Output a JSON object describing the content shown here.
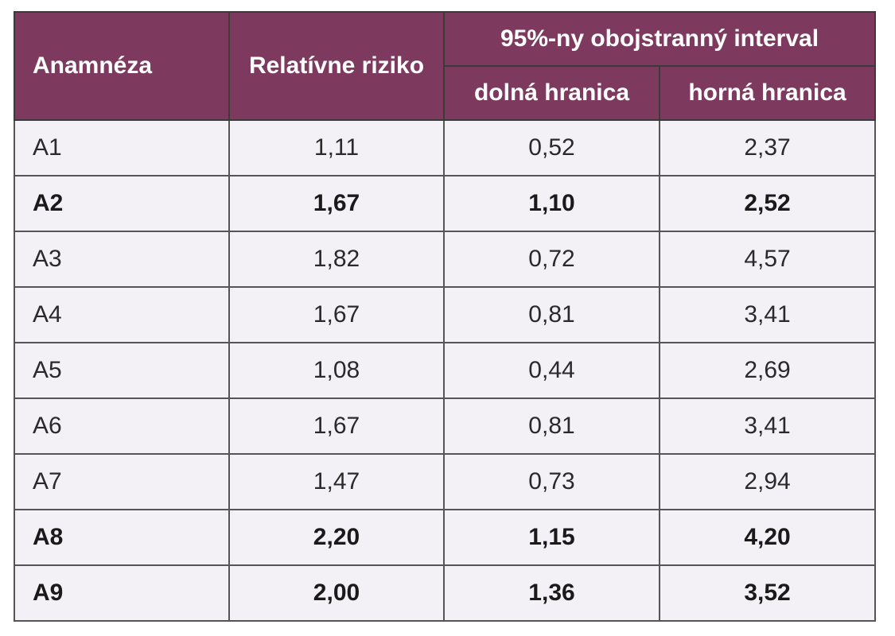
{
  "table": {
    "headers": {
      "anamneza": "Anamnéza",
      "relative_risk": "Relatívne riziko",
      "ci_group": "95%-ny obojstranný interval",
      "lower": "dolná hranica",
      "upper": "horná hranica"
    },
    "rows": [
      {
        "label": "A1",
        "rr": "1,11",
        "lower": "0,52",
        "upper": "2,37",
        "bold": false
      },
      {
        "label": "A2",
        "rr": "1,67",
        "lower": "1,10",
        "upper": "2,52",
        "bold": true
      },
      {
        "label": "A3",
        "rr": "1,82",
        "lower": "0,72",
        "upper": "4,57",
        "bold": false
      },
      {
        "label": "A4",
        "rr": "1,67",
        "lower": "0,81",
        "upper": "3,41",
        "bold": false
      },
      {
        "label": "A5",
        "rr": "1,08",
        "lower": "0,44",
        "upper": "2,69",
        "bold": false
      },
      {
        "label": "A6",
        "rr": "1,67",
        "lower": "0,81",
        "upper": "3,41",
        "bold": false
      },
      {
        "label": "A7",
        "rr": "1,47",
        "lower": "0,73",
        "upper": "2,94",
        "bold": false
      },
      {
        "label": "A8",
        "rr": "2,20",
        "lower": "1,15",
        "upper": "4,20",
        "bold": true
      },
      {
        "label": "A9",
        "rr": "2,00",
        "lower": "1,36",
        "upper": "3,52",
        "bold": true
      }
    ]
  },
  "colors": {
    "header_bg": "#7d3a5e",
    "cell_bg": "#f3f0f6"
  }
}
